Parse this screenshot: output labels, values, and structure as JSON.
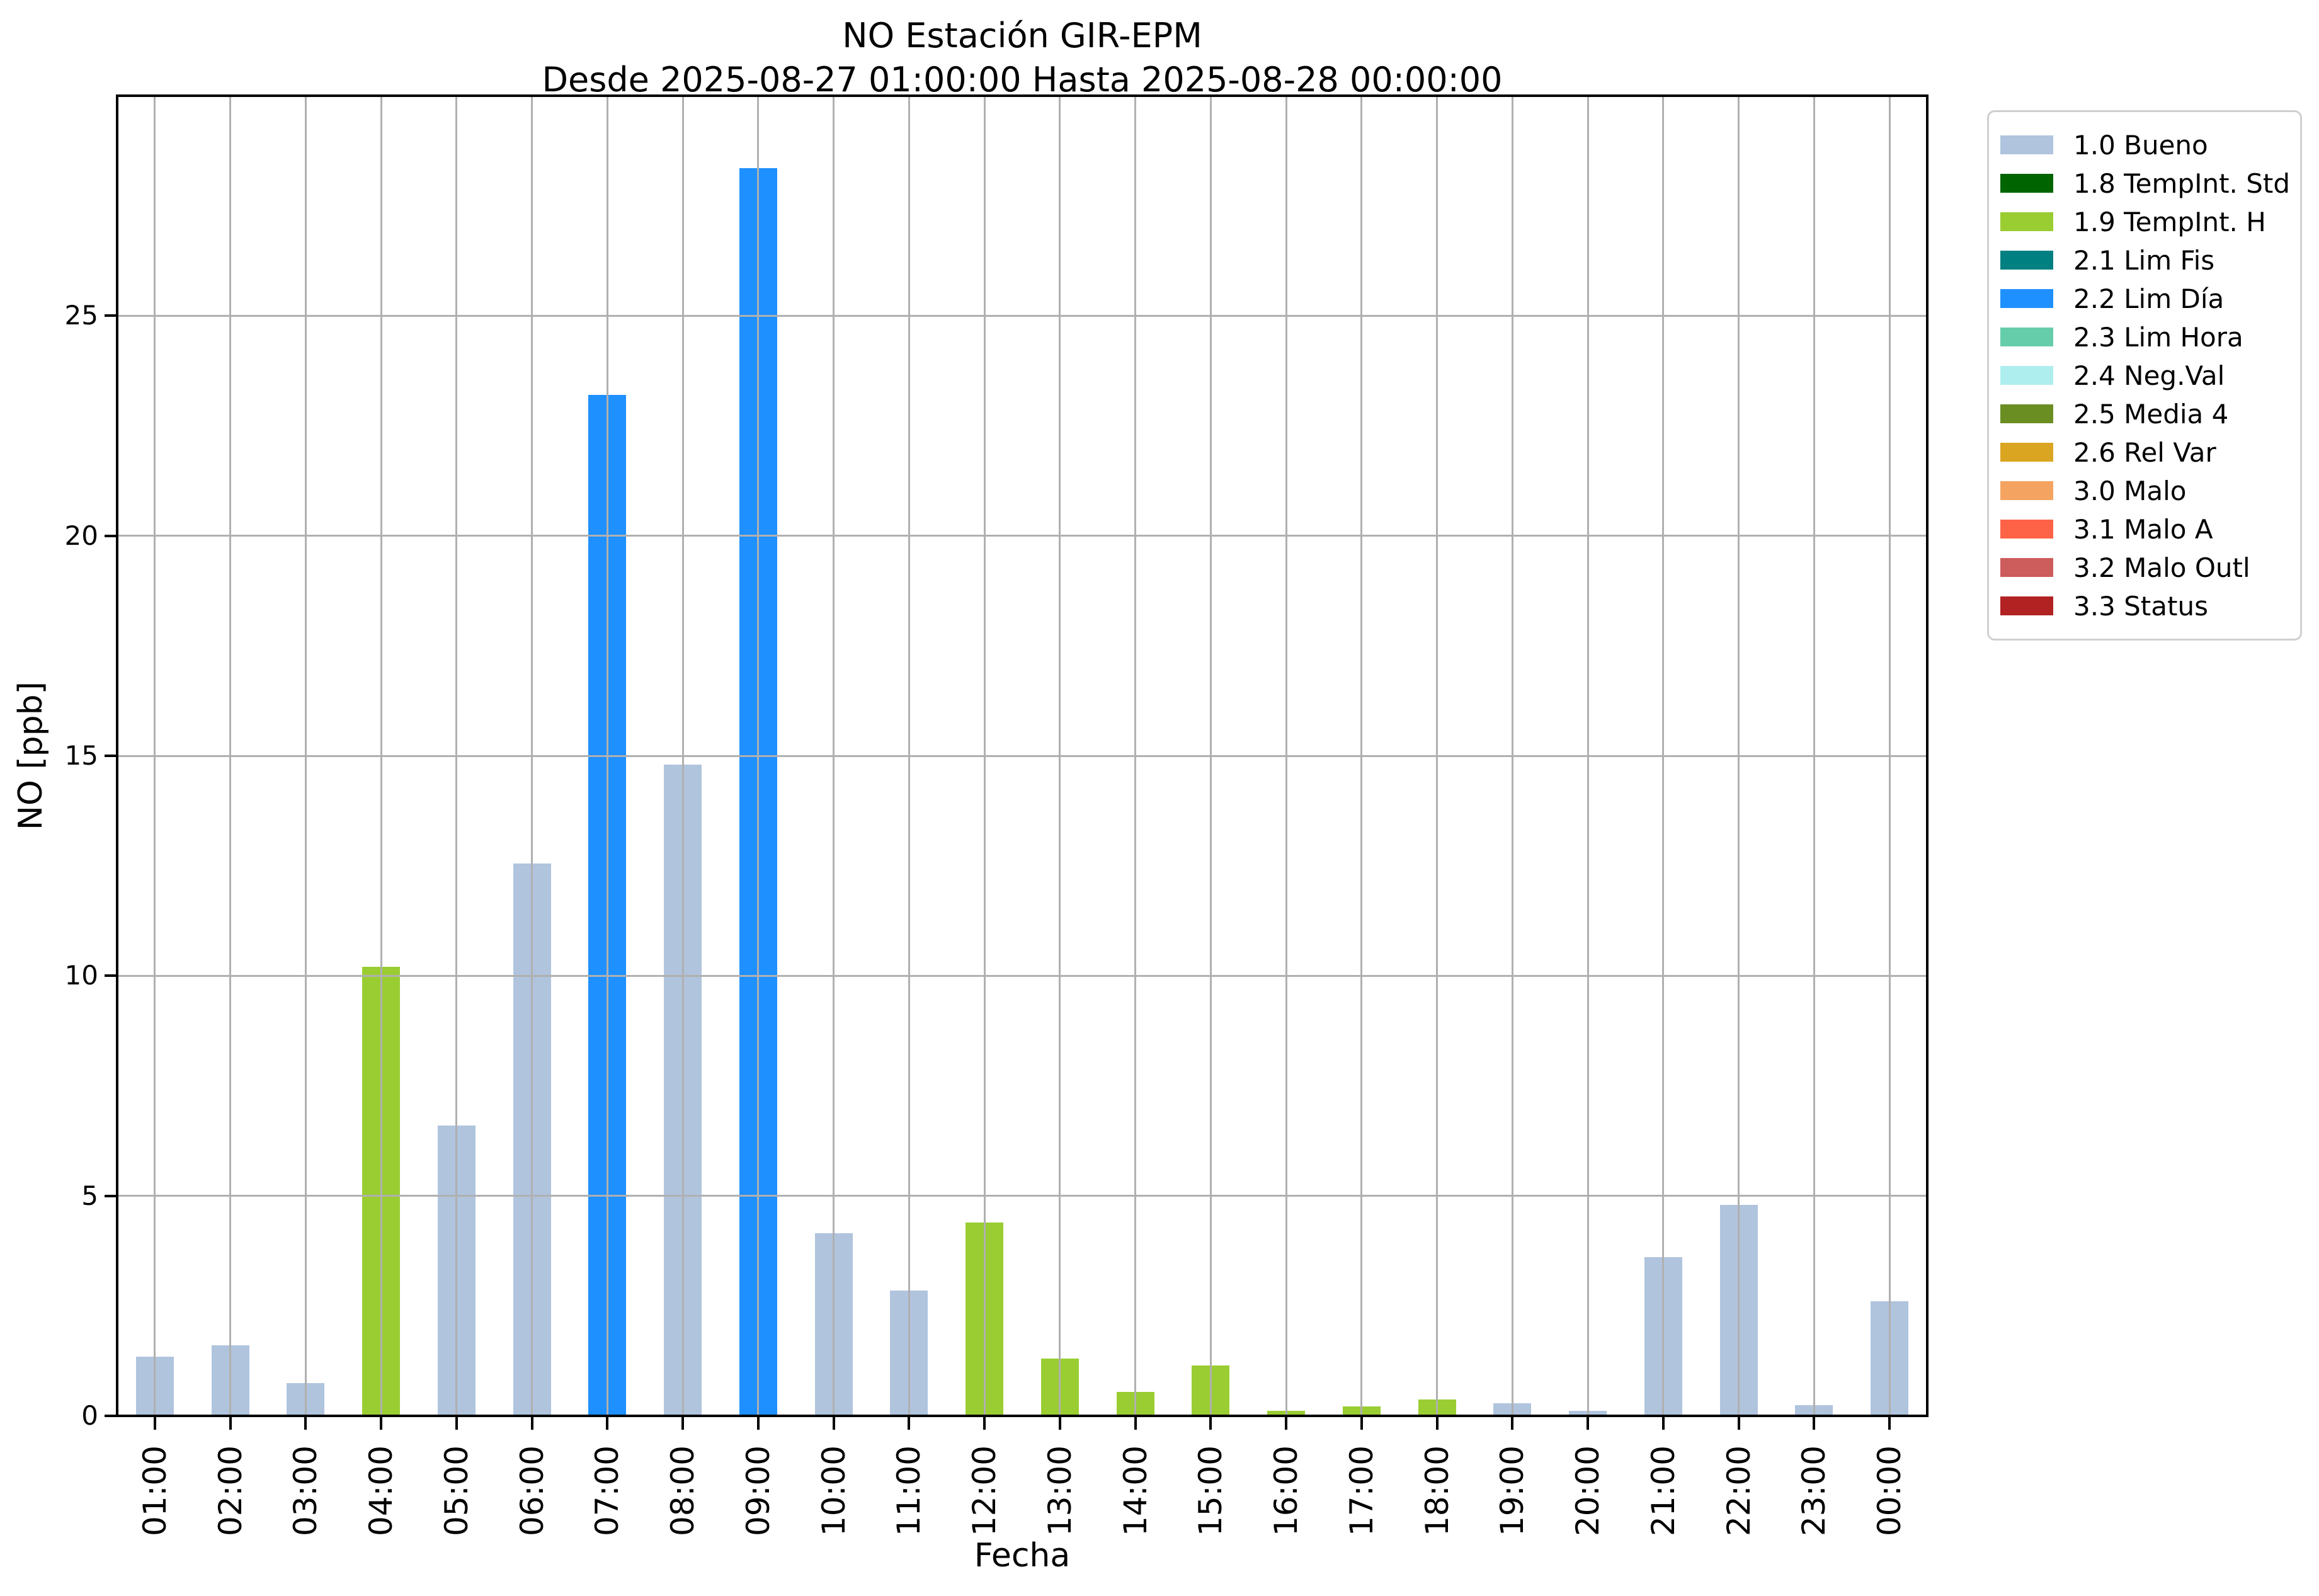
{
  "title": {
    "line1": "NO Estación GIR-EPM",
    "line2": "Desde 2025-08-27 01:00:00 Hasta 2025-08-28 00:00:00"
  },
  "axes": {
    "ylabel": "NO [ppb]",
    "xlabel": "Fecha",
    "yticks": [
      "0",
      "5",
      "10",
      "15",
      "20",
      "25"
    ]
  },
  "legend": {
    "items": [
      {
        "label": "1.0 Bueno",
        "key": "bueno",
        "color": "#b0c4de"
      },
      {
        "label": "1.8 TempInt. Std",
        "key": "tempint_std",
        "color": "#006400"
      },
      {
        "label": "1.9 TempInt. H",
        "key": "tempint_h",
        "color": "#9acd32"
      },
      {
        "label": "2.1 Lim Fis",
        "key": "lim_fis",
        "color": "#008080"
      },
      {
        "label": "2.2 Lim Día",
        "key": "lim_dia",
        "color": "#1e90ff"
      },
      {
        "label": "2.3 Lim Hora",
        "key": "lim_hora",
        "color": "#66cdaa"
      },
      {
        "label": "2.4 Neg.Val",
        "key": "neg_val",
        "color": "#afeeee"
      },
      {
        "label": "2.5 Media 4",
        "key": "media_4",
        "color": "#6b8e23"
      },
      {
        "label": "2.6 Rel Var",
        "key": "rel_var",
        "color": "#daa520"
      },
      {
        "label": "3.0 Malo",
        "key": "malo",
        "color": "#f4a460"
      },
      {
        "label": "3.1 Malo A",
        "key": "malo_a",
        "color": "#ff6347"
      },
      {
        "label": "3.2 Malo Outl",
        "key": "malo_outl",
        "color": "#cd5c5c"
      },
      {
        "label": "3.3 Status",
        "key": "status",
        "color": "#b22222"
      }
    ]
  },
  "chart_data": {
    "type": "bar",
    "title": "NO Estación GIR-EPM",
    "subtitle": "Desde 2025-08-27 01:00:00 Hasta 2025-08-28 00:00:00",
    "xlabel": "Fecha",
    "ylabel": "NO [ppb]",
    "ylim": [
      0,
      30
    ],
    "ytick_values": [
      0,
      5,
      10,
      15,
      20,
      25
    ],
    "grid": true,
    "grid_color": "#b0b0b0",
    "grid_above_bars": true,
    "legend_position": "outside-right",
    "categories": [
      "01:00",
      "02:00",
      "03:00",
      "04:00",
      "05:00",
      "06:00",
      "07:00",
      "08:00",
      "09:00",
      "10:00",
      "11:00",
      "12:00",
      "13:00",
      "14:00",
      "15:00",
      "16:00",
      "17:00",
      "18:00",
      "19:00",
      "20:00",
      "21:00",
      "22:00",
      "23:00",
      "00:00"
    ],
    "values": [
      1.35,
      1.6,
      0.75,
      10.2,
      6.6,
      12.55,
      23.2,
      14.8,
      28.35,
      4.15,
      2.85,
      4.4,
      1.3,
      0.55,
      1.15,
      0.12,
      0.21,
      0.37,
      0.29,
      0.12,
      3.6,
      4.8,
      0.25,
      2.6
    ],
    "statuses": [
      "bueno",
      "bueno",
      "bueno",
      "tempint_h",
      "bueno",
      "bueno",
      "lim_dia",
      "bueno",
      "lim_dia",
      "bueno",
      "bueno",
      "tempint_h",
      "tempint_h",
      "tempint_h",
      "tempint_h",
      "tempint_h",
      "tempint_h",
      "tempint_h",
      "bueno",
      "bueno",
      "bueno",
      "bueno",
      "bueno",
      "bueno"
    ],
    "status_colors": {
      "bueno": "#b0c4de",
      "tempint_std": "#006400",
      "tempint_h": "#9acd32",
      "lim_fis": "#008080",
      "lim_dia": "#1e90ff",
      "lim_hora": "#66cdaa",
      "neg_val": "#afeeee",
      "media_4": "#6b8e23",
      "rel_var": "#daa520",
      "malo": "#f4a460",
      "malo_a": "#ff6347",
      "malo_outl": "#cd5c5c",
      "status": "#b22222"
    }
  }
}
